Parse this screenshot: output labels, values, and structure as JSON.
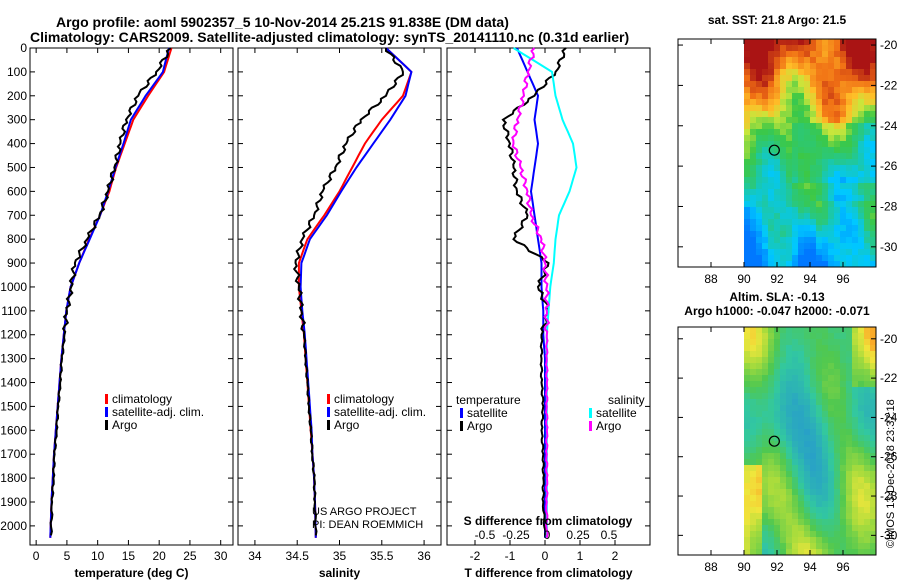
{
  "header": {
    "line1": "Argo profile: aoml 5902357_5 10-Nov-2014 25.21S 91.838E (DM data)",
    "line2": "Climatology: CARS2009. Satellite-adjusted climatology: synTS_20141110.nc (0.31d earlier)"
  },
  "colors": {
    "climatology": "#ff0000",
    "satellite_adj": "#0000ff",
    "argo": "#000000",
    "satellite_salinity": "#00ffff",
    "argo_salinity_diff": "#ff00ff"
  },
  "chart_data": [
    {
      "id": "temperature",
      "type": "line",
      "xlabel": "temperature (deg C)",
      "ylabel": "",
      "xlim": [
        -1,
        32
      ],
      "ylim": [
        2080,
        0
      ],
      "xticks": [
        0,
        5,
        10,
        15,
        20,
        25,
        30
      ],
      "yticks": [
        0,
        100,
        200,
        300,
        400,
        500,
        600,
        700,
        800,
        900,
        1000,
        1100,
        1200,
        1300,
        1400,
        1500,
        1600,
        1700,
        1800,
        1900,
        2000
      ],
      "legend": [
        "climatology",
        "satellite-adj. clim.",
        "Argo"
      ],
      "series": [
        {
          "name": "climatology",
          "x": [
            22.0,
            20.8,
            18.2,
            15.8,
            14.4,
            13.0,
            11.9,
            10.4,
            8.6,
            7.0,
            5.6,
            4.9,
            4.5,
            4.1,
            3.8,
            3.5,
            3.2,
            2.9,
            2.7,
            2.5,
            2.3
          ],
          "y": [
            0,
            100,
            200,
            300,
            400,
            500,
            600,
            700,
            800,
            900,
            1000,
            1100,
            1200,
            1300,
            1400,
            1500,
            1600,
            1700,
            1800,
            1900,
            2050
          ]
        },
        {
          "name": "satellite-adj. clim.",
          "x": [
            21.6,
            20.6,
            17.8,
            15.4,
            14.2,
            12.9,
            11.7,
            10.4,
            8.7,
            7.0,
            5.6,
            4.9,
            4.5,
            4.1,
            3.8,
            3.5,
            3.2,
            2.9,
            2.7,
            2.5,
            2.3
          ],
          "y": [
            0,
            100,
            200,
            300,
            400,
            500,
            600,
            700,
            800,
            900,
            1000,
            1100,
            1200,
            1300,
            1400,
            1500,
            1600,
            1700,
            1800,
            1900,
            2050
          ]
        },
        {
          "name": "Argo",
          "x": [
            21.9,
            19.5,
            16.6,
            14.6,
            13.7,
            12.7,
            11.7,
            10.3,
            8.3,
            6.3,
            5.7,
            5.0,
            4.6,
            4.2,
            3.9,
            3.6,
            3.3,
            3.0,
            2.8,
            2.6,
            2.4
          ],
          "y": [
            0,
            100,
            200,
            300,
            400,
            500,
            600,
            700,
            800,
            900,
            1000,
            1100,
            1200,
            1300,
            1400,
            1500,
            1600,
            1700,
            1800,
            1900,
            2040
          ]
        }
      ]
    },
    {
      "id": "salinity",
      "type": "line",
      "xlabel": "salinity",
      "xlim": [
        33.8,
        36.2
      ],
      "ylim": [
        2080,
        0
      ],
      "xticks": [
        34,
        34.5,
        35,
        35.5,
        36
      ],
      "xticklabels": [
        "34",
        "34.5",
        "35",
        "35.5",
        "36"
      ],
      "legend": [
        "climatology",
        "satellite-adj. clim.",
        "Argo"
      ],
      "annotation": [
        "US ARGO PROJECT",
        "PI: DEAN ROEMMICH"
      ],
      "series": [
        {
          "name": "climatology",
          "x": [
            35.55,
            35.85,
            35.75,
            35.5,
            35.3,
            35.15,
            35.0,
            34.82,
            34.62,
            34.52,
            34.52,
            34.55,
            34.58,
            34.6,
            34.62,
            34.64,
            34.66,
            34.68,
            34.7,
            34.71,
            34.72
          ],
          "y": [
            0,
            100,
            200,
            300,
            400,
            500,
            600,
            700,
            800,
            900,
            1000,
            1100,
            1200,
            1300,
            1400,
            1500,
            1600,
            1700,
            1800,
            1900,
            2050
          ]
        },
        {
          "name": "satellite-adj. clim.",
          "x": [
            35.55,
            35.85,
            35.78,
            35.6,
            35.4,
            35.2,
            35.02,
            34.85,
            34.65,
            34.55,
            34.54,
            34.56,
            34.59,
            34.61,
            34.63,
            34.65,
            34.67,
            34.68,
            34.7,
            34.71,
            34.72
          ],
          "y": [
            0,
            100,
            200,
            300,
            400,
            500,
            600,
            700,
            800,
            900,
            1000,
            1100,
            1200,
            1300,
            1400,
            1500,
            1600,
            1700,
            1800,
            1900,
            2050
          ]
        },
        {
          "name": "Argo",
          "x": [
            35.55,
            35.75,
            35.55,
            35.25,
            35.08,
            34.95,
            34.8,
            34.7,
            34.56,
            34.48,
            34.52,
            34.55,
            34.58,
            34.6,
            34.62,
            34.64,
            34.66,
            34.68,
            34.7,
            34.71,
            34.72
          ],
          "y": [
            0,
            100,
            200,
            300,
            400,
            500,
            600,
            700,
            800,
            900,
            1000,
            1100,
            1200,
            1300,
            1400,
            1500,
            1600,
            1700,
            1800,
            1900,
            2040
          ]
        }
      ]
    },
    {
      "id": "difference",
      "type": "line",
      "xlabel": "T difference from climatology",
      "top_label": "S difference from climatology",
      "xlim": [
        -2.8,
        3.0
      ],
      "ylim": [
        2080,
        0
      ],
      "xticks": [
        -2,
        -1,
        0,
        1,
        2
      ],
      "top_ticks": [
        -0.5,
        -0.25,
        0,
        0.25,
        0.5
      ],
      "top_ticklabels": [
        "-0.5",
        "-0.25",
        "0",
        "0.25",
        "0.5"
      ],
      "legend_temperature_title": "temperature",
      "legend_salinity_title": "salinity",
      "legend_temperature": [
        "satellite",
        "Argo"
      ],
      "legend_salinity": [
        "satellite",
        "Argo"
      ],
      "series": [
        {
          "name": "T satellite",
          "x": [
            -0.8,
            -0.5,
            -0.2,
            -0.3,
            -0.2,
            -0.3,
            -0.4,
            -0.3,
            -0.2,
            -0.1,
            -0.1,
            -0.05,
            -0.05,
            0,
            0,
            0,
            0,
            0,
            0,
            0,
            0
          ],
          "y": [
            0,
            100,
            200,
            300,
            400,
            500,
            600,
            700,
            800,
            900,
            1000,
            1100,
            1200,
            1300,
            1400,
            1500,
            1600,
            1700,
            1800,
            1900,
            2050
          ]
        },
        {
          "name": "T Argo",
          "x": [
            0.6,
            0.3,
            -0.3,
            -1.2,
            -1.0,
            -0.9,
            -0.8,
            -0.5,
            -0.9,
            0.1,
            -0.2,
            0.1,
            -0.1,
            -0.1,
            -0.1,
            -0.05,
            -0.1,
            -0.05,
            -0.05,
            -0.05,
            0
          ],
          "y": [
            0,
            100,
            200,
            300,
            400,
            500,
            600,
            700,
            800,
            900,
            1000,
            1100,
            1200,
            1300,
            1400,
            1500,
            1600,
            1700,
            1800,
            1900,
            2040
          ]
        },
        {
          "name": "S satellite",
          "x": [
            -0.9,
            0.2,
            0.3,
            0.5,
            0.8,
            0.9,
            0.7,
            0.4,
            0.3,
            0.25,
            0.15,
            0.1,
            0.05,
            0.05,
            0.05,
            0.05,
            0.05,
            0.05,
            0.05,
            0.05,
            0.05
          ],
          "y": [
            0,
            100,
            200,
            300,
            400,
            500,
            600,
            700,
            800,
            900,
            1000,
            1100,
            1200,
            1300,
            1400,
            1500,
            1600,
            1700,
            1800,
            1900,
            2050
          ]
        },
        {
          "name": "S Argo",
          "x": [
            -0.3,
            -0.5,
            -0.6,
            -0.8,
            -0.9,
            -0.7,
            -0.5,
            -0.4,
            -0.1,
            0.0,
            0.05,
            0.05,
            0.05,
            0.05,
            0.05,
            0.05,
            0.05,
            0.05,
            0.05,
            0.05,
            0.05
          ],
          "y": [
            0,
            100,
            200,
            300,
            400,
            500,
            600,
            700,
            800,
            900,
            1000,
            1100,
            1200,
            1300,
            1400,
            1500,
            1600,
            1700,
            1800,
            1900,
            2050
          ]
        }
      ]
    },
    {
      "id": "sst-map",
      "type": "heatmap",
      "title": "sat. SST: 21.8 Argo: 21.5",
      "xlim": [
        86,
        98
      ],
      "ylim": [
        -31,
        -19.7
      ],
      "xticks": [
        88,
        90,
        92,
        94,
        96
      ],
      "yticks": [
        -20,
        -22,
        -24,
        -26,
        -28,
        -30
      ],
      "data_x_start": 90,
      "marker": {
        "lon": 91.838,
        "lat": -25.21
      }
    },
    {
      "id": "sla-map",
      "type": "heatmap",
      "title_line1": "Altim. SLA: -0.13",
      "title_line2": "Argo h1000: -0.047 h2000: -0.071",
      "xlim": [
        86,
        98
      ],
      "ylim": [
        -31,
        -19.4
      ],
      "xticks": [
        88,
        90,
        92,
        94,
        96
      ],
      "yticks": [
        -20,
        -22,
        -24,
        -26,
        -28,
        -30
      ],
      "data_x_start": 90,
      "marker": {
        "lon": 91.838,
        "lat": -25.21
      }
    }
  ],
  "footer": {
    "timestamp": "©IMOS 13-Dec-2018 23:37:18"
  }
}
